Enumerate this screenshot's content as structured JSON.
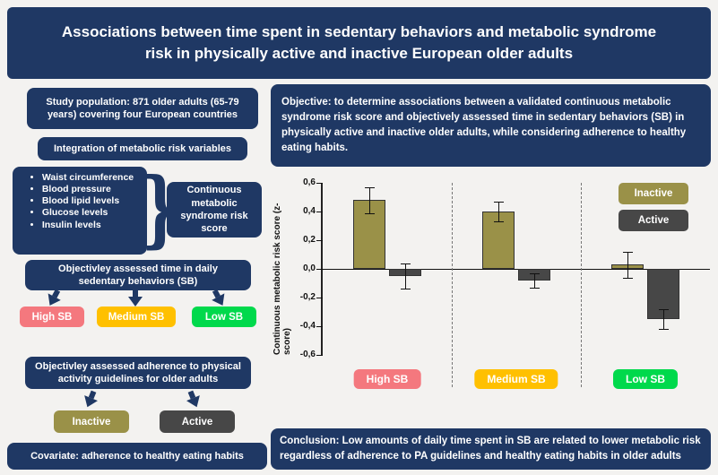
{
  "title": "Associations between time spent in sedentary behaviors and metabolic syndrome risk in physically active and inactive European older adults",
  "left": {
    "study_population": "Study population: 871 older adults (65-79 years) covering four European countries",
    "integration": "Integration of metabolic risk variables",
    "risk_variables": [
      "Waist circumference",
      "Blood pressure",
      "Blood lipid levels",
      "Glucose levels",
      "Insulin levels"
    ],
    "risk_score": "Continuous metabolic syndrome risk score",
    "sb_time": "Objectivley assessed time in daily sedentary behaviors (SB)",
    "sb_levels": [
      {
        "label": "High SB",
        "color": "#f4787e"
      },
      {
        "label": "Medium SB",
        "color": "#ffc000"
      },
      {
        "label": "Low SB",
        "color": "#00d94c"
      }
    ],
    "pa_adherence": "Objectivley assessed adherence to physical activity guidelines for older adults",
    "pa_groups": [
      {
        "label": "Inactive",
        "color": "#9a9148"
      },
      {
        "label": "Active",
        "color": "#474747"
      }
    ],
    "covariate": "Covariate: adherence to healthy eating habits"
  },
  "right": {
    "objective": "Objective: to determine associations between a validated continuous metabolic syndrome risk score and objectively assessed time in sedentary behaviors (SB) in physically active and inactive older adults, while considering adherence to healthy eating habits.",
    "conclusion": "Conclusion: Low amounts of daily time spent in SB are related to lower metabolic risk regardless of adherence to PA guidelines and healthy eating habits in older adults"
  },
  "chart_data": {
    "type": "bar",
    "title": "",
    "xlabel": "",
    "ylabel": "Continuous metabolic risk score (z-score)",
    "ylim": [
      -0.6,
      0.6
    ],
    "ytick_labels": [
      "0,6",
      "0,4",
      "0,2",
      "0,0",
      "-0,2",
      "-0,4",
      "-0,6"
    ],
    "categories": [
      "High SB",
      "Medium SB",
      "Low SB"
    ],
    "category_colors": [
      "#f4787e",
      "#ffc000",
      "#00d94c"
    ],
    "series": [
      {
        "name": "Inactive",
        "color": "#9a9148",
        "values": [
          0.48,
          0.4,
          0.03
        ],
        "errors": [
          0.09,
          0.07,
          0.09
        ]
      },
      {
        "name": "Active",
        "color": "#474747",
        "values": [
          -0.05,
          -0.08,
          -0.35
        ],
        "errors": [
          0.09,
          0.05,
          0.07
        ]
      }
    ],
    "legend_position": "top-right",
    "grid": false
  },
  "colors": {
    "navy": "#1f3864",
    "background": "#f3f2f0"
  }
}
